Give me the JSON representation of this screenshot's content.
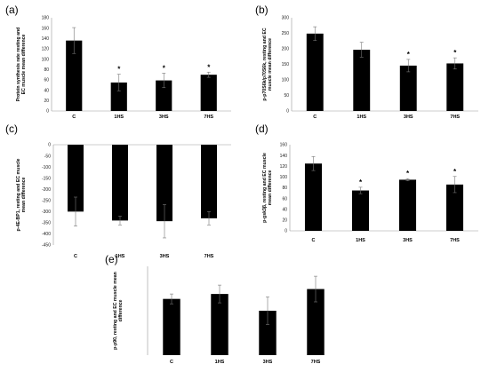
{
  "charts": [
    {
      "letter": "(a)",
      "chart_data": {
        "type": "bar",
        "title": "",
        "xlabel": "",
        "ylabel": "Protein synthesis rate resting and EC muscle mean difference",
        "ylabel_lines": [
          "Protein synthesis rate resting and",
          "EC muscle mean difference"
        ],
        "categories": [
          "C",
          "1HS",
          "3HS",
          "7HS"
        ],
        "values": [
          136,
          55,
          59,
          70
        ],
        "errors": [
          25,
          16,
          14,
          5
        ],
        "significance": [
          "",
          "*",
          "*",
          "*"
        ],
        "ylim": [
          0,
          180
        ],
        "yticks": [
          0,
          20,
          40,
          60,
          80,
          100,
          120,
          140,
          160,
          180
        ],
        "grid": false,
        "bar_color": "#000000"
      }
    },
    {
      "letter": "(b)",
      "chart_data": {
        "type": "bar",
        "title": "",
        "xlabel": "",
        "ylabel": "p-p70S6k/p70S6k, resting and EC muscle mean difference",
        "ylabel_lines": [
          "p-p70S6k/p70S6k, resting and EC",
          "muscle mean difference"
        ],
        "categories": [
          "C",
          "1HS",
          "3HS",
          "7HS"
        ],
        "values": [
          249,
          197,
          146,
          153
        ],
        "errors": [
          22,
          24,
          20,
          18
        ],
        "significance": [
          "",
          "",
          "*",
          "*"
        ],
        "ylim": [
          0,
          300
        ],
        "yticks": [
          0,
          50,
          100,
          150,
          200,
          250,
          300
        ],
        "grid": false,
        "bar_color": "#000000"
      }
    },
    {
      "letter": "(c)",
      "chart_data": {
        "type": "bar",
        "title": "",
        "xlabel": "",
        "ylabel": "p-4E-BP1, resting and EC muscle mean difference",
        "ylabel_lines": [
          "p-4E-BP1, resting and EC muscle",
          "mean difference"
        ],
        "categories": [
          "C",
          "1HS",
          "3HS",
          "7HS"
        ],
        "values": [
          -300,
          -340,
          -343,
          -330
        ],
        "errors": [
          65,
          20,
          75,
          30
        ],
        "significance": [
          "",
          "",
          "",
          ""
        ],
        "ylim": [
          -450,
          0
        ],
        "yticks": [
          0,
          -50,
          -100,
          -150,
          -200,
          -250,
          -300,
          -350,
          -400,
          -450
        ],
        "grid": false,
        "bar_color": "#000000"
      }
    },
    {
      "letter": "(d)",
      "chart_data": {
        "type": "bar",
        "title": "",
        "xlabel": "",
        "ylabel": "p-gsk3β, resting and EC muscle mean difference",
        "ylabel_lines": [
          "p-gsk3β, resting and EC muscle",
          "mean difference"
        ],
        "categories": [
          "C",
          "1HS",
          "3HS",
          "7HS"
        ],
        "values": [
          125,
          75,
          95,
          86
        ],
        "errors": [
          13,
          6,
          2,
          15
        ],
        "significance": [
          "",
          "*",
          "*",
          "*"
        ],
        "ylim": [
          0,
          160
        ],
        "yticks": [
          0,
          20,
          40,
          60,
          80,
          100,
          120,
          140,
          160
        ],
        "grid": false,
        "bar_color": "#000000"
      }
    },
    {
      "letter": "(e)",
      "chart_data": {
        "type": "bar",
        "title": "",
        "xlabel": "",
        "ylabel": "p-p90, resting and EC muscle mean difference",
        "ylabel_lines": [
          "p-p90, resting and EC muscle mean",
          "difference"
        ],
        "categories": [
          "C",
          "1HS",
          "3HS",
          "7HS"
        ],
        "values": [
          57,
          62,
          45,
          67
        ],
        "errors": [
          5,
          9,
          14,
          13
        ],
        "significance": [
          "",
          "",
          "",
          ""
        ],
        "ylim": [
          0,
          90
        ],
        "yticks": [],
        "grid": false,
        "bar_color": "#000000"
      }
    }
  ]
}
